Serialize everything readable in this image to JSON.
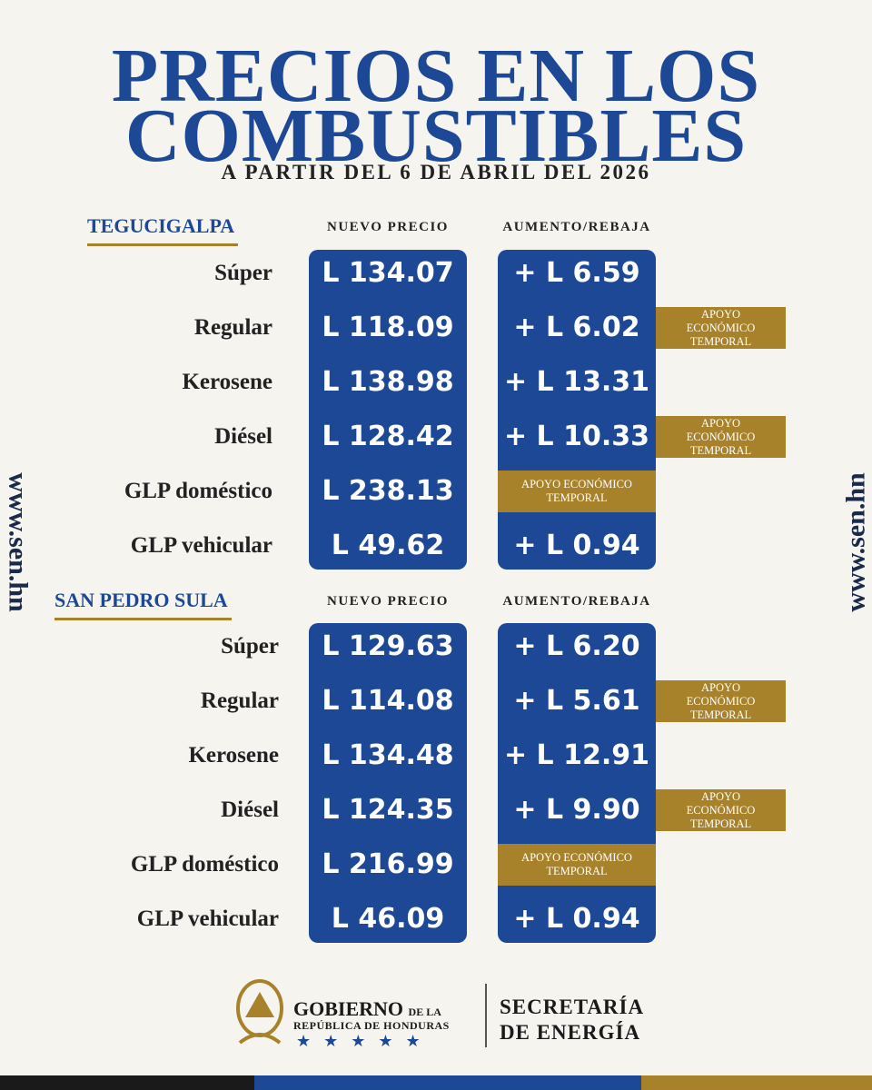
{
  "header": {
    "title_line1": "PRECIOS EN LOS",
    "title_line2": "COMBUSTIBLES",
    "subtitle": "A PARTIR DEL 6 DE ABRIL DEL 2026"
  },
  "website": "www.sen.hn",
  "sections": [
    {
      "city": "TEGUCIGALPA",
      "price_header": "NUEVO PRECIO",
      "change_header": "AUMENTO/REBAJA",
      "rows": [
        {
          "fuel": "Súper",
          "price": "L 134.07",
          "change": "+ L 6.59"
        },
        {
          "fuel": "Regular",
          "price": "L 118.09",
          "change": "+ L 6.02",
          "support": "APOYO ECONÓMICO TEMPORAL"
        },
        {
          "fuel": "Kerosene",
          "price": "L 138.98",
          "change": "+ L 13.31"
        },
        {
          "fuel": "Diésel",
          "price": "L 128.42",
          "change": "+ L 10.33",
          "support": "APOYO ECONÓMICO TEMPORAL"
        },
        {
          "fuel": "GLP doméstico",
          "price": "L 238.13",
          "support": "APOYO ECONÓMICO TEMPORAL"
        },
        {
          "fuel": "GLP vehicular",
          "price": "L 49.62",
          "change": "+ L 0.94"
        }
      ]
    },
    {
      "city": "SAN PEDRO SULA",
      "price_header": "NUEVO PRECIO",
      "change_header": "AUMENTO/REBAJA",
      "rows": [
        {
          "fuel": "Súper",
          "price": "L 129.63",
          "change": "+ L 6.20"
        },
        {
          "fuel": "Regular",
          "price": "L 114.08",
          "change": "+ L 5.61",
          "support": "APOYO ECONÓMICO TEMPORAL"
        },
        {
          "fuel": "Kerosene",
          "price": "L 134.48",
          "change": "+ L 12.91"
        },
        {
          "fuel": "Diésel",
          "price": "L 124.35",
          "change": "+ L 9.90",
          "support": "APOYO ECONÓMICO TEMPORAL"
        },
        {
          "fuel": "GLP doméstico",
          "price": "L 216.99",
          "support": "APOYO ECONÓMICO TEMPORAL"
        },
        {
          "fuel": "GLP vehicular",
          "price": "L 46.09",
          "change": "+ L 0.94"
        }
      ]
    }
  ],
  "footer": {
    "gov_main": "GOBIERNO",
    "gov_small": "DE LA",
    "gov_sub": "REPÚBLICA DE HONDURAS",
    "ministry_line1": "SECRETARÍA",
    "ministry_line2": "DE ENERGÍA"
  }
}
